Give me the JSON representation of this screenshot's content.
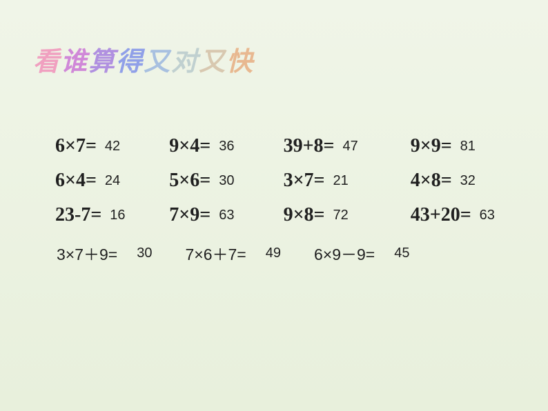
{
  "title": {
    "chars": [
      "看",
      "谁",
      "算",
      "得",
      "又",
      "对",
      "又",
      "快"
    ]
  },
  "grid": {
    "rows": [
      [
        {
          "expr": "6×7=",
          "ans": "42"
        },
        {
          "expr": "9×4=",
          "ans": "36"
        },
        {
          "expr": "39+8=",
          "ans": "47"
        },
        {
          "expr": "9×9=",
          "ans": "81"
        }
      ],
      [
        {
          "expr": "6×4=",
          "ans": "24"
        },
        {
          "expr": "5×6=",
          "ans": "30"
        },
        {
          "expr": "3×7=",
          "ans": "21"
        },
        {
          "expr": "4×8=",
          "ans": "32"
        }
      ],
      [
        {
          "expr": "23-7=",
          "ans": "16"
        },
        {
          "expr": "7×9=",
          "ans": "63"
        },
        {
          "expr": "9×8=",
          "ans": "72"
        },
        {
          "expr": "43+20=",
          "ans": "63"
        }
      ]
    ]
  },
  "bottom": [
    {
      "expr": "3×7＋9=",
      "ans": "30"
    },
    {
      "expr": "7×6＋7=",
      "ans": "49"
    },
    {
      "expr": "6×9－9=",
      "ans": "45"
    }
  ]
}
